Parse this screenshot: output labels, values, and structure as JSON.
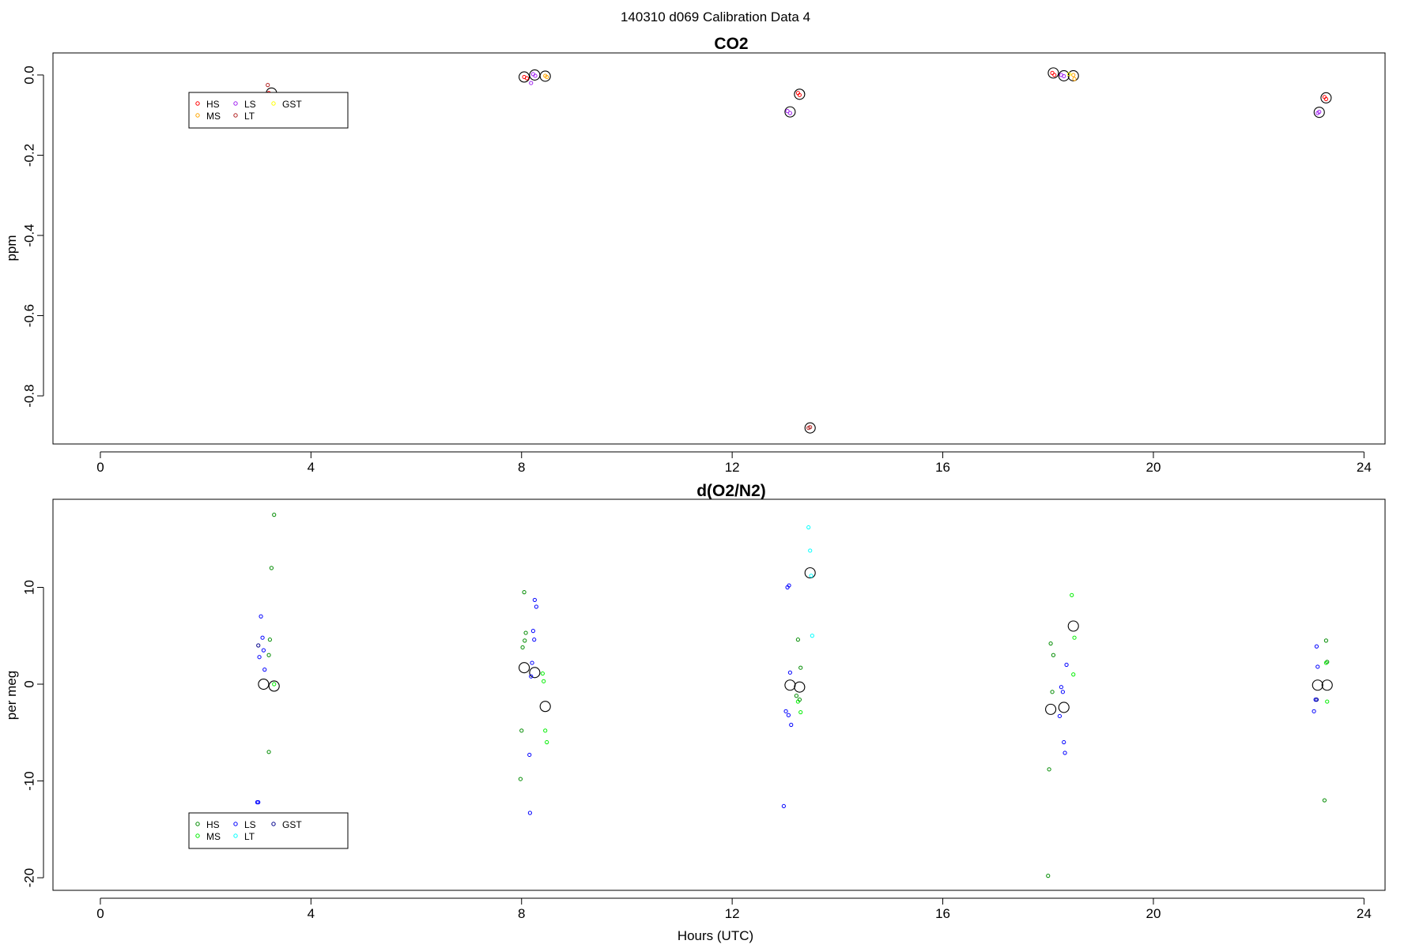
{
  "figure_title": "140310   d069   Calibration Data 4",
  "xlabel": "Hours (UTC)",
  "colors": {
    "HS_co2": "#ff0000",
    "MS_co2": "#ffa500",
    "LS_co2": "#a020f0",
    "LT_co2": "#b22222",
    "GST_co2": "#ffff00",
    "HS_o2": "#008b00",
    "MS_o2": "#00ee00",
    "LS_o2": "#0000ff",
    "LT_o2": "#00ffff",
    "GST_o2": "#00008b"
  },
  "chart_data": [
    {
      "type": "scatter",
      "title": "CO2",
      "ylabel": "ppm",
      "xlim": [
        -0.9,
        24.4
      ],
      "ylim": [
        -0.92,
        0.055
      ],
      "x_ticks": [
        0,
        4,
        8,
        12,
        16,
        20,
        24
      ],
      "y_ticks": [
        0.0,
        -0.2,
        -0.4,
        -0.6,
        -0.8
      ],
      "legend": {
        "position": "top-left",
        "entries": [
          {
            "label": "HS",
            "color": "HS_co2"
          },
          {
            "label": "MS",
            "color": "MS_co2"
          },
          {
            "label": "LS",
            "color": "LS_co2"
          },
          {
            "label": "LT",
            "color": "LT_co2"
          },
          {
            "label": "GST",
            "color": "GST_co2"
          }
        ]
      },
      "series": [
        {
          "color": "HS_co2",
          "points": [
            [
              3.2,
              -0.045
            ],
            [
              3.22,
              -0.05
            ],
            [
              8.05,
              -0.005
            ],
            [
              8.1,
              -0.008
            ],
            [
              13.25,
              -0.045
            ],
            [
              13.28,
              -0.05
            ],
            [
              18.08,
              0.005
            ],
            [
              18.12,
              0.0
            ],
            [
              23.25,
              -0.055
            ],
            [
              23.28,
              -0.06
            ]
          ]
        },
        {
          "color": "MS_co2",
          "points": [
            [
              8.45,
              -0.002
            ],
            [
              8.48,
              -0.005
            ],
            [
              18.48,
              0.0
            ],
            [
              18.5,
              -0.01
            ]
          ]
        },
        {
          "color": "LS_co2",
          "points": [
            [
              8.22,
              0.002
            ],
            [
              8.26,
              -0.002
            ],
            [
              8.18,
              -0.02
            ],
            [
              13.05,
              -0.09
            ],
            [
              13.1,
              -0.095
            ],
            [
              18.25,
              0.0
            ],
            [
              18.3,
              -0.003
            ],
            [
              23.12,
              -0.095
            ],
            [
              23.15,
              -0.092
            ]
          ]
        },
        {
          "color": "LT_co2",
          "points": [
            [
              3.18,
              -0.025
            ],
            [
              13.45,
              -0.88
            ],
            [
              13.48,
              -0.878
            ]
          ]
        },
        {
          "color": "GST_co2",
          "points": [
            [
              18.4,
              0.002
            ]
          ]
        }
      ],
      "means": [
        [
          3.25,
          -0.045
        ],
        [
          8.05,
          -0.005
        ],
        [
          8.25,
          0.0
        ],
        [
          8.45,
          -0.003
        ],
        [
          13.1,
          -0.092
        ],
        [
          13.28,
          -0.048
        ],
        [
          13.48,
          -0.88
        ],
        [
          18.1,
          0.005
        ],
        [
          18.3,
          -0.002
        ],
        [
          18.48,
          -0.002
        ],
        [
          23.15,
          -0.093
        ],
        [
          23.28,
          -0.057
        ]
      ]
    },
    {
      "type": "scatter",
      "title": "d(O2/N2)",
      "ylabel": "per meg",
      "xlim": [
        -0.9,
        24.4
      ],
      "ylim": [
        -21.3,
        19.1
      ],
      "x_ticks": [
        0,
        4,
        8,
        12,
        16,
        20,
        24
      ],
      "y_ticks": [
        10,
        0,
        -10,
        -20
      ],
      "legend": {
        "position": "bottom-left",
        "entries": [
          {
            "label": "HS",
            "color": "HS_o2"
          },
          {
            "label": "MS",
            "color": "MS_o2"
          },
          {
            "label": "LS",
            "color": "LS_o2"
          },
          {
            "label": "LT",
            "color": "LT_o2"
          },
          {
            "label": "GST",
            "color": "GST_o2"
          }
        ]
      },
      "series": [
        {
          "color": "HS_o2",
          "points": [
            [
              3.2,
              -7.0
            ],
            [
              3.25,
              12.0
            ],
            [
              3.3,
              17.5
            ],
            [
              3.22,
              4.6
            ],
            [
              3.2,
              3.0
            ],
            [
              8.05,
              9.5
            ],
            [
              8.08,
              5.3
            ],
            [
              8.02,
              3.8
            ],
            [
              8.06,
              4.5
            ],
            [
              8.0,
              -4.8
            ],
            [
              7.98,
              -9.8
            ],
            [
              13.25,
              4.6
            ],
            [
              13.3,
              1.7
            ],
            [
              13.28,
              -1.6
            ],
            [
              13.22,
              -1.2
            ],
            [
              18.05,
              4.2
            ],
            [
              18.1,
              3.0
            ],
            [
              18.08,
              -0.8
            ],
            [
              18.02,
              -8.8
            ],
            [
              18.0,
              -19.8
            ],
            [
              23.25,
              -12.0
            ],
            [
              23.28,
              4.5
            ],
            [
              23.3,
              2.3
            ]
          ]
        },
        {
          "color": "MS_o2",
          "points": [
            [
              3.3,
              0.0
            ],
            [
              8.4,
              1.1
            ],
            [
              8.45,
              -4.8
            ],
            [
              8.48,
              -6.0
            ],
            [
              8.42,
              0.3
            ],
            [
              13.3,
              -2.9
            ],
            [
              13.25,
              -1.8
            ],
            [
              18.45,
              9.2
            ],
            [
              18.5,
              4.8
            ],
            [
              18.48,
              1.0
            ],
            [
              23.3,
              -1.8
            ],
            [
              23.28,
              2.2
            ]
          ]
        },
        {
          "color": "LS_o2",
          "points": [
            [
              3.05,
              7.0
            ],
            [
              3.08,
              4.8
            ],
            [
              3.1,
              3.5
            ],
            [
              3.02,
              2.8
            ],
            [
              3.12,
              1.5
            ],
            [
              2.98,
              -12.2
            ],
            [
              3.0,
              -12.2
            ],
            [
              8.25,
              8.7
            ],
            [
              8.28,
              8.0
            ],
            [
              8.22,
              5.5
            ],
            [
              8.24,
              4.6
            ],
            [
              8.2,
              2.2
            ],
            [
              8.18,
              0.8
            ],
            [
              8.15,
              -7.3
            ],
            [
              8.16,
              -13.3
            ],
            [
              13.05,
              10.0
            ],
            [
              13.08,
              10.2
            ],
            [
              13.1,
              1.2
            ],
            [
              13.02,
              -2.8
            ],
            [
              13.07,
              -3.2
            ],
            [
              13.12,
              -4.2
            ],
            [
              12.98,
              -12.6
            ],
            [
              18.25,
              -0.3
            ],
            [
              18.28,
              -0.8
            ],
            [
              18.3,
              -6.0
            ],
            [
              18.32,
              -7.1
            ],
            [
              18.35,
              2.0
            ],
            [
              18.22,
              -3.3
            ],
            [
              23.1,
              3.9
            ],
            [
              23.12,
              1.8
            ],
            [
              23.08,
              -1.6
            ],
            [
              23.05,
              -2.8
            ]
          ]
        },
        {
          "color": "LT_o2",
          "points": [
            [
              13.45,
              16.2
            ],
            [
              13.48,
              13.8
            ],
            [
              13.5,
              11.2
            ],
            [
              13.52,
              5.0
            ]
          ]
        },
        {
          "color": "GST_o2",
          "points": [
            [
              3.0,
              4.0
            ],
            [
              23.1,
              -1.6
            ]
          ]
        }
      ],
      "means": [
        [
          3.1,
          0.0
        ],
        [
          3.3,
          -0.2
        ],
        [
          8.05,
          1.7
        ],
        [
          8.25,
          1.2
        ],
        [
          8.45,
          -2.3
        ],
        [
          13.1,
          -0.1
        ],
        [
          13.28,
          -0.3
        ],
        [
          13.48,
          11.5
        ],
        [
          18.05,
          -2.6
        ],
        [
          18.3,
          -2.4
        ],
        [
          18.48,
          6.0
        ],
        [
          23.12,
          -0.1
        ],
        [
          23.3,
          -0.1
        ]
      ]
    }
  ]
}
